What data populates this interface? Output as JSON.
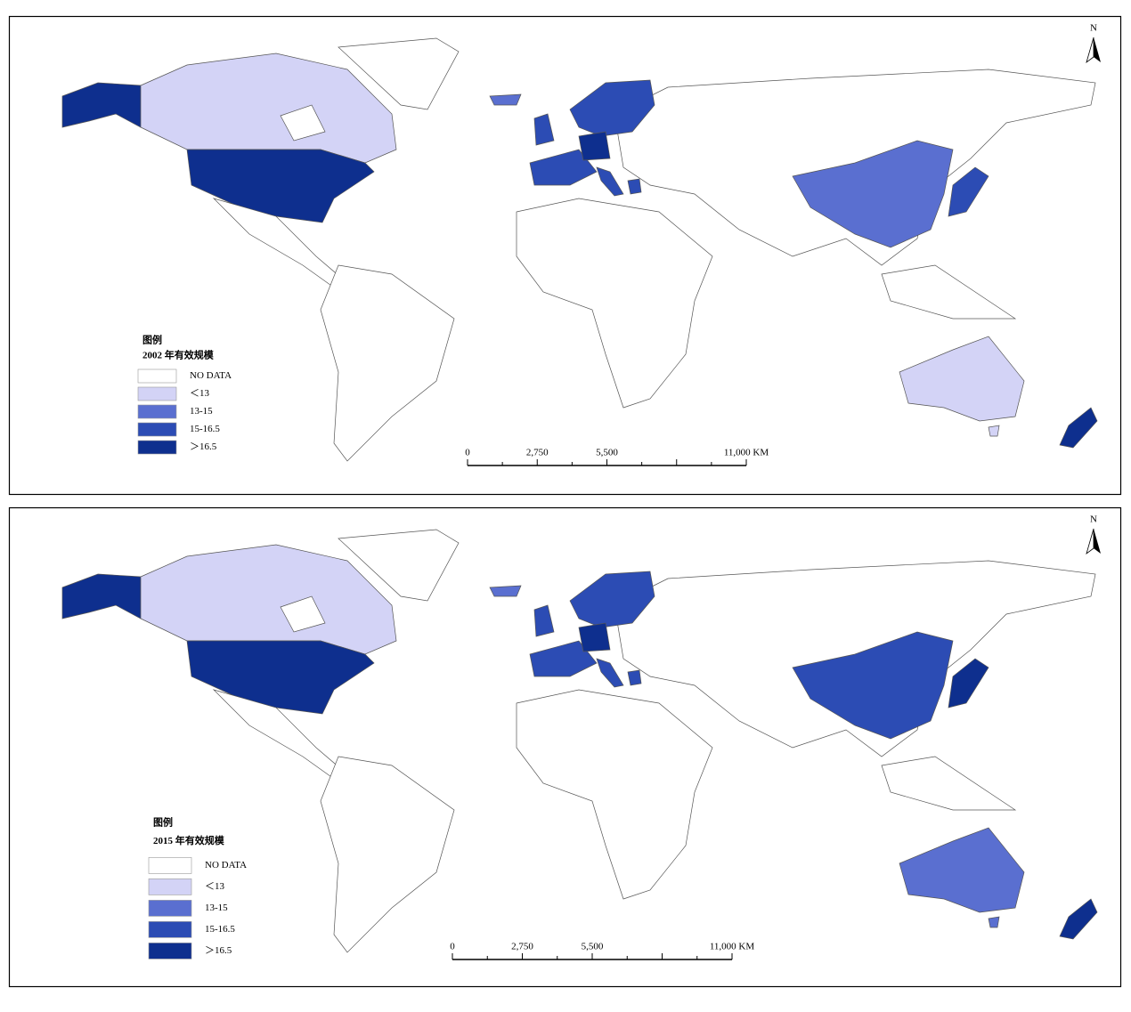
{
  "panels": [
    {
      "legend_title": "图例",
      "year_title": "2002 年有效规模",
      "north": "N",
      "legend": [
        {
          "label": "NO DATA",
          "color": "#ffffff"
        },
        {
          "label": "＜13",
          "color": "#d3d3f6"
        },
        {
          "label": "13-15",
          "color": "#5a6fd0"
        },
        {
          "label": "15-16.5",
          "color": "#2c4cb4"
        },
        {
          "label": "＞16.5",
          "color": "#0e2f8e"
        }
      ],
      "scale": [
        "0",
        "2,750",
        "5,500",
        "11,000 KM"
      ]
    },
    {
      "legend_title": "图例",
      "year_title": "2015 年有效规模",
      "north": "N",
      "legend": [
        {
          "label": "NO DATA",
          "color": "#ffffff"
        },
        {
          "label": "＜13",
          "color": "#d3d3f6"
        },
        {
          "label": "13-15",
          "color": "#5a6fd0"
        },
        {
          "label": "15-16.5",
          "color": "#2c4cb4"
        },
        {
          "label": "＞16.5",
          "color": "#0e2f8e"
        }
      ],
      "scale": [
        "0",
        "2,750",
        "5,500",
        "11,000 KM"
      ]
    }
  ]
}
